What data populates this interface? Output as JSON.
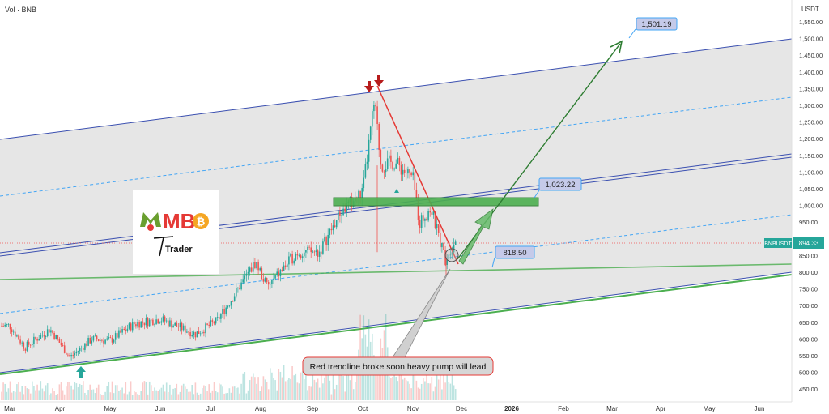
{
  "header": {
    "vol_label": "Vol · BNB"
  },
  "axis": {
    "currency": "USDT",
    "y_ticks": [
      "1,550.00",
      "1,500.00",
      "1,450.00",
      "1,400.00",
      "1,350.00",
      "1,300.00",
      "1,250.00",
      "1,200.00",
      "1,150.00",
      "1,100.00",
      "1,050.00",
      "1,000.00",
      "950.00",
      "900.00",
      "850.00",
      "800.00",
      "750.00",
      "700.00",
      "650.00",
      "600.00",
      "550.00",
      "500.00",
      "450.00"
    ],
    "x_ticks": [
      "Mar",
      "Apr",
      "May",
      "Jun",
      "Jul",
      "Aug",
      "Sep",
      "Oct",
      "Nov",
      "Dec",
      "2026",
      "Feb",
      "Mar",
      "Apr",
      "May",
      "Jun"
    ]
  },
  "price_tag": {
    "symbol": "BNBUSDT",
    "value": "894.33"
  },
  "annotations": {
    "target": "1,501.19",
    "resistance": "1,023.22",
    "support": "818.50",
    "note": "Red trendline broke soon heavy pump will lead"
  },
  "logo": {
    "text": "MB",
    "sub": "Trader"
  },
  "colors": {
    "up": "#26a69a",
    "down": "#ef5350",
    "channel_line": "#3a4fb0",
    "green": "#4caf50",
    "dark_green": "#2e7d32",
    "trend_red": "#e53935",
    "arrow_red": "#b71c1c",
    "label_bg": "#c5cae9",
    "tag_bg": "#26a69a"
  },
  "chart_data": {
    "type": "candlestick",
    "symbol": "BNBUSDT",
    "x_range": [
      "2025-03",
      "2026-06"
    ],
    "ylim": [
      430,
      1575
    ],
    "y_scale": "log",
    "last_price": 894.33,
    "levels": {
      "target": 1501.19,
      "resistance": 1023.22,
      "support": 818.5
    },
    "price_path": [
      {
        "x": "2025-03-01",
        "y": 640
      },
      {
        "x": "2025-03-10",
        "y": 575
      },
      {
        "x": "2025-03-25",
        "y": 630
      },
      {
        "x": "2025-04-07",
        "y": 545
      },
      {
        "x": "2025-04-20",
        "y": 600
      },
      {
        "x": "2025-05-01",
        "y": 595
      },
      {
        "x": "2025-05-15",
        "y": 645
      },
      {
        "x": "2025-06-01",
        "y": 660
      },
      {
        "x": "2025-06-22",
        "y": 615
      },
      {
        "x": "2025-07-05",
        "y": 655
      },
      {
        "x": "2025-07-28",
        "y": 830
      },
      {
        "x": "2025-08-05",
        "y": 755
      },
      {
        "x": "2025-08-22",
        "y": 860
      },
      {
        "x": "2025-09-05",
        "y": 860
      },
      {
        "x": "2025-09-18",
        "y": 980
      },
      {
        "x": "2025-10-01",
        "y": 1040
      },
      {
        "x": "2025-10-08",
        "y": 1310
      },
      {
        "x": "2025-10-12",
        "y": 1120
      },
      {
        "x": "2025-10-20",
        "y": 1130
      },
      {
        "x": "2025-11-01",
        "y": 1080
      },
      {
        "x": "2025-11-05",
        "y": 950
      },
      {
        "x": "2025-11-12",
        "y": 990
      },
      {
        "x": "2025-11-21",
        "y": 840
      },
      {
        "x": "2025-11-27",
        "y": 894.33
      }
    ],
    "markers": [
      {
        "type": "arrow-up",
        "x": "2025-04-07",
        "color": "green"
      },
      {
        "type": "arrow-down",
        "x": "2025-10-07",
        "color": "red"
      },
      {
        "type": "arrow-down",
        "x": "2025-10-12",
        "color": "red"
      }
    ]
  }
}
